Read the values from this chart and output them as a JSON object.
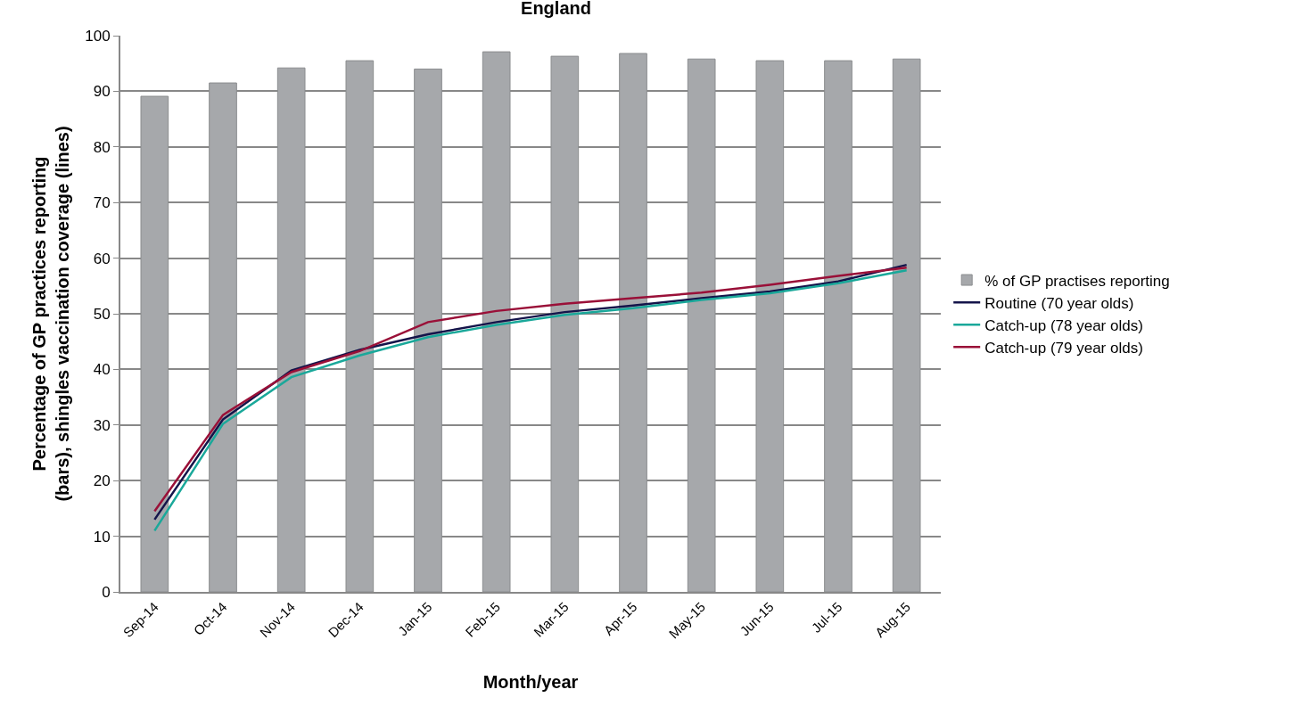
{
  "chart_data": {
    "type": "bar",
    "title": "England",
    "xlabel": "Month/year",
    "ylabel": "Percentage of GP practices reporting (bars), shingles vaccination coverage (lines)",
    "categories": [
      "Sep-14",
      "Oct-14",
      "Nov-14",
      "Dec-14",
      "Jan-15",
      "Feb-15",
      "Mar-15",
      "Apr-15",
      "May-15",
      "Jun-15",
      "Jul-15",
      "Aug-15"
    ],
    "series": [
      {
        "name": "% of GP practises reporting",
        "color": "#a6a8ab",
        "values": [
          89.1,
          91.5,
          94.2,
          95.5,
          94,
          97.1,
          96.3,
          96.8,
          95.8,
          95.5,
          95.5,
          95.8
        ]
      },
      {
        "name": "Routine (70 year olds)",
        "type": "line",
        "color": "#14144a",
        "values": [
          13,
          31,
          39.8,
          43.5,
          46.3,
          48.5,
          50.3,
          51.5,
          52.8,
          54,
          55.8,
          58.8
        ]
      },
      {
        "name": "Catch-up (78 year olds)",
        "type": "line",
        "color": "#1aa89a",
        "values": [
          11,
          30.2,
          38.6,
          42.5,
          45.8,
          48,
          49.8,
          51,
          52.5,
          53.7,
          55.5,
          57.8
        ]
      },
      {
        "name": "Catch-up (79 year olds)",
        "type": "line",
        "color": "#9a1038",
        "values": [
          14.5,
          31.8,
          39.5,
          43.3,
          48.5,
          50.5,
          51.8,
          52.8,
          53.8,
          55.2,
          56.8,
          58.3
        ]
      }
    ],
    "ylim": [
      0,
      100
    ],
    "yticks": [
      0,
      10,
      20,
      30,
      40,
      50,
      60,
      70,
      80,
      90,
      100
    ],
    "grid": "y",
    "legend": "right",
    "marker": "none",
    "line_style": "solid"
  }
}
